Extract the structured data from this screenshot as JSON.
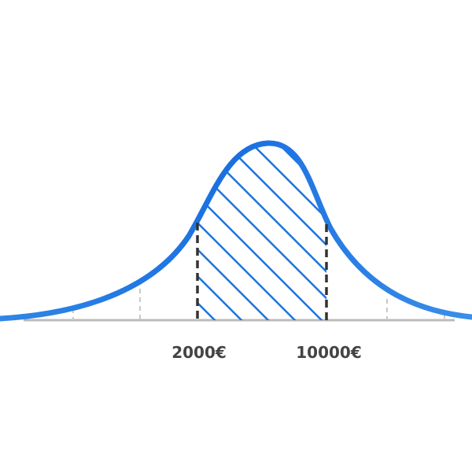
{
  "markers": [
    {
      "label": "2000€"
    },
    {
      "label": "10000€"
    }
  ]
}
